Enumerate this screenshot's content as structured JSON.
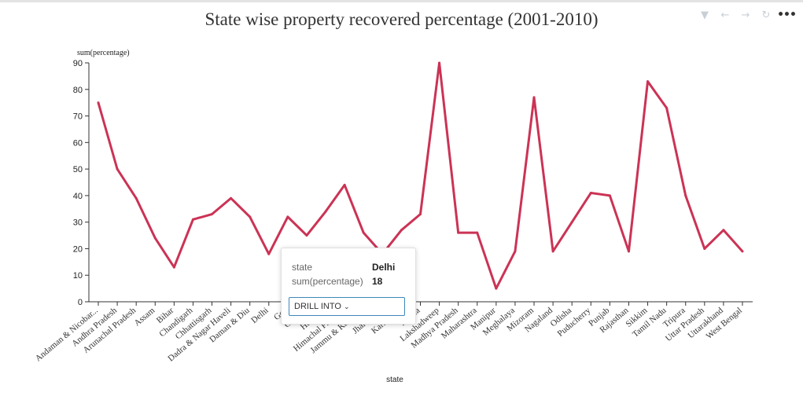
{
  "title": "State wise property recovered percentage (2001-2010)",
  "toolbar": {
    "icons": [
      "filter-icon",
      "back-arrow-icon",
      "forward-arrow-icon",
      "refresh-icon",
      "more-icon"
    ]
  },
  "tooltip": {
    "state_key": "state",
    "state_value": "Delhi",
    "value_key": "sum(percentage)",
    "value_value": "18",
    "drill_label": "DRILL INTO"
  },
  "colors": {
    "line": "#cb3355",
    "axis": "#333333"
  },
  "chart_data": {
    "type": "line",
    "xlabel": "state",
    "ylabel": "sum(percentage)",
    "ylim": [
      0,
      90
    ],
    "yticks": [
      0,
      10,
      20,
      30,
      40,
      50,
      60,
      70,
      80,
      90
    ],
    "grid": false,
    "categories": [
      "Andaman & Nicobar...",
      "Andhra Pradesh",
      "Arunachal Pradesh",
      "Assam",
      "Bihar",
      "Chandigarh",
      "Chhattisgarh",
      "Dadra & Nagar Haveli",
      "Daman & Diu",
      "Delhi",
      "Goa",
      "Gujarat",
      "Haryana",
      "Himachal Pradesh",
      "Jammu & Kashmir",
      "Jharkhand",
      "Karnataka",
      "Kerala",
      "Lakshadweep",
      "Madhya Pradesh",
      "Maharashtra",
      "Manipur",
      "Meghalaya",
      "Mizoram",
      "Nagaland",
      "Odisha",
      "Puducherry",
      "Punjab",
      "Rajasthan",
      "Sikkim",
      "Tamil Nadu",
      "Tripura",
      "Uttar Pradesh",
      "Uttarakhand",
      "West Bengal"
    ],
    "series": [
      {
        "values": [
          75,
          50,
          39,
          24,
          13,
          31,
          33,
          39,
          32,
          18,
          32,
          25,
          34,
          44,
          26,
          18,
          27,
          33,
          90,
          26,
          26,
          5,
          19,
          77,
          19,
          30,
          41,
          40,
          19,
          83,
          73,
          40,
          20,
          27,
          19
        ]
      }
    ]
  }
}
